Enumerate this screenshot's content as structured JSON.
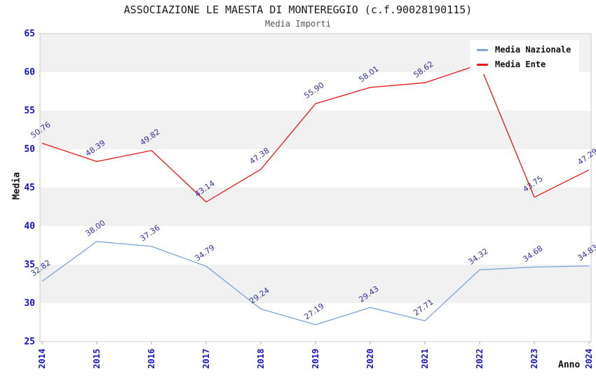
{
  "chart_data": {
    "type": "line",
    "title": "ASSOCIAZIONE LE MAESTA DI MONTEREGGIO (c.f.90028190115)",
    "subtitle": "Media Importi",
    "xlabel": "Anno",
    "ylabel": "Media",
    "ylim": [
      25,
      65
    ],
    "y_ticks": [
      65,
      60,
      55,
      50,
      45,
      40,
      35,
      30,
      25
    ],
    "categories": [
      "2014",
      "2015",
      "2016",
      "2017",
      "2018",
      "2019",
      "2020",
      "2021",
      "2022",
      "2023",
      "2024"
    ],
    "grid": "alternating-horizontal-bands",
    "legend_position": "top-right-inside",
    "series": [
      {
        "name": "Media Nazionale",
        "color": "#79a3d9",
        "values": [
          32.82,
          38.0,
          37.36,
          34.79,
          29.24,
          27.19,
          29.43,
          27.71,
          34.32,
          34.68,
          34.83
        ],
        "labels": [
          "32.82",
          "38.00",
          "37.36",
          "34.79",
          "29.24",
          "27.19",
          "29.43",
          "27.71",
          "34.32",
          "34.68",
          "34.83"
        ]
      },
      {
        "name": "Media Ente",
        "color": "#f01414",
        "values": [
          50.76,
          48.39,
          49.82,
          43.14,
          47.38,
          55.9,
          58.01,
          58.62,
          61.0,
          43.75,
          47.29
        ],
        "labels": [
          "50.76",
          "48.39",
          "49.82",
          "43.14",
          "47.38",
          "55.90",
          "58.01",
          "58.62",
          null,
          "43.75",
          "47.29"
        ]
      }
    ],
    "colors": {
      "band": "#f1f1f1",
      "plot_border": "#c9c9c9",
      "tick_label": "#1414cc",
      "data_label": "#32329b",
      "title_text": "#1a1a1a",
      "subtitle_text": "#555555"
    }
  }
}
